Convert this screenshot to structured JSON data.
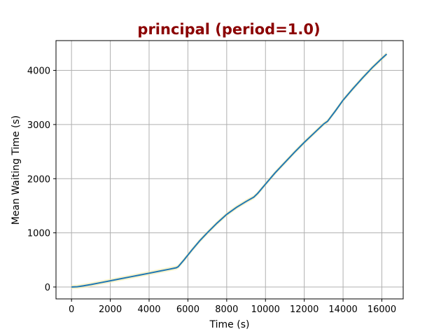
{
  "chart_data": {
    "type": "line",
    "title": "principal (period=1.0)",
    "xlabel": "Time (s)",
    "ylabel": "Mean Waiting Time (s)",
    "xlim": [
      -800,
      17100
    ],
    "ylim": [
      -220,
      4550
    ],
    "xticks": [
      0,
      2000,
      4000,
      6000,
      8000,
      10000,
      12000,
      14000,
      16000
    ],
    "yticks": [
      0,
      1000,
      2000,
      3000,
      4000
    ],
    "grid": true,
    "colors": {
      "title": "#8b0000",
      "line": "#1f77b4",
      "band": "#f3e9a0",
      "grid": "#b0b0b0"
    },
    "series": [
      {
        "x": [
          0,
          300,
          600,
          1000,
          1500,
          2000,
          2500,
          3000,
          3500,
          4000,
          4500,
          5000,
          5400,
          5500,
          5800,
          6200,
          6600,
          7000,
          7500,
          8000,
          8500,
          9000,
          9400,
          9600,
          10000,
          10500,
          11000,
          11500,
          12000,
          12500,
          13000,
          13200,
          13600,
          14000,
          14500,
          15000,
          15500,
          16000,
          16250
        ],
        "values": [
          0,
          5,
          20,
          45,
          80,
          115,
          150,
          185,
          220,
          255,
          290,
          325,
          355,
          375,
          500,
          680,
          850,
          1000,
          1180,
          1340,
          1470,
          1580,
          1660,
          1730,
          1900,
          2110,
          2300,
          2490,
          2670,
          2840,
          3010,
          3060,
          3250,
          3450,
          3660,
          3860,
          4050,
          4220,
          4300
        ]
      }
    ]
  }
}
